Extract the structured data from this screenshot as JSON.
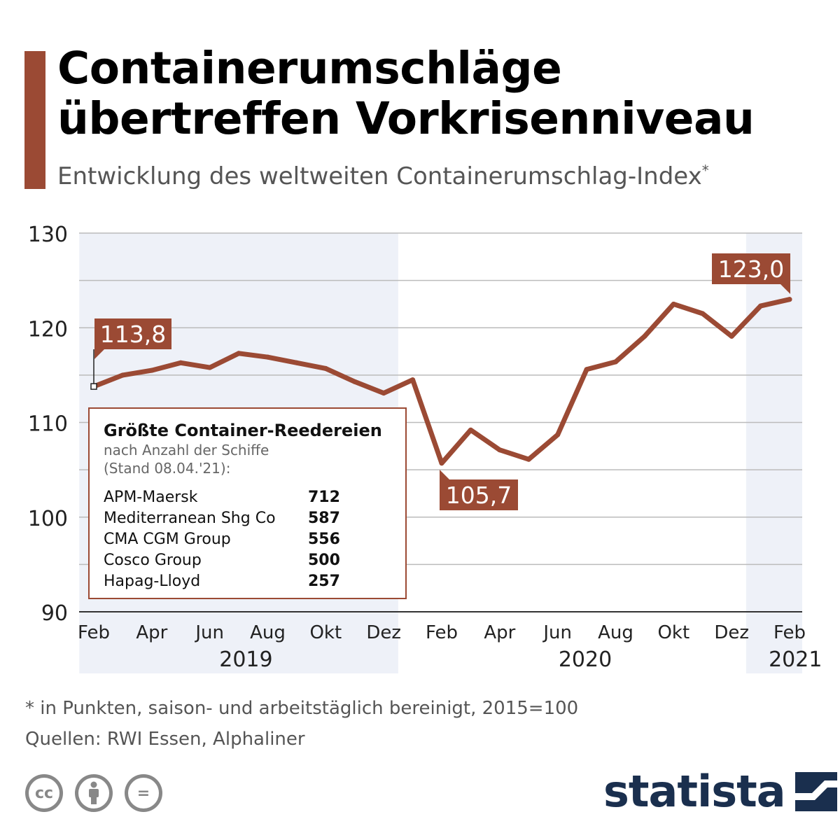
{
  "header": {
    "title_line1": "Containerumschläge",
    "title_line2": "übertreffen Vorkrisenniveau",
    "subtitle": "Entwicklung des weltweiten Containerumschlag-Index",
    "subtitle_marker": "*"
  },
  "colors": {
    "accent": "#9b4a34",
    "band": "#eef1f8",
    "grid": "#bbbbbb",
    "brand": "#1a2f4e"
  },
  "chart_data": {
    "type": "line",
    "title": "Entwicklung des weltweiten Containerumschlag-Index",
    "ylim": [
      90,
      130
    ],
    "yticks": [
      90,
      100,
      110,
      120,
      130
    ],
    "x_tick_labels": [
      "Feb",
      "Apr",
      "Jun",
      "Aug",
      "Okt",
      "Dez",
      "Feb",
      "Apr",
      "Jun",
      "Aug",
      "Okt",
      "Dez",
      "Feb"
    ],
    "year_labels": [
      {
        "label": "2019",
        "center_index": 5.25
      },
      {
        "label": "2020",
        "center_index": 16.95
      },
      {
        "label": "2021",
        "center_index": 24.2
      }
    ],
    "year_bands": [
      {
        "from_index": -0.5,
        "to_index": 10.5
      },
      {
        "from_index": 22.5,
        "to_index": 24.5
      }
    ],
    "series": [
      {
        "name": "Containerumschlag-Index",
        "x": [
          "Feb 2019",
          "Mär 2019",
          "Apr 2019",
          "Mai 2019",
          "Jun 2019",
          "Jul 2019",
          "Aug 2019",
          "Sep 2019",
          "Okt 2019",
          "Nov 2019",
          "Dez 2019",
          "Jan 2020",
          "Feb 2020",
          "Mär 2020",
          "Apr 2020",
          "Mai 2020",
          "Jun 2020",
          "Jul 2020",
          "Aug 2020",
          "Sep 2020",
          "Okt 2020",
          "Nov 2020",
          "Dez 2020",
          "Jan 2021",
          "Feb 2021"
        ],
        "values": [
          113.8,
          115.0,
          115.5,
          116.3,
          115.8,
          117.3,
          116.9,
          116.3,
          115.7,
          114.3,
          113.1,
          114.5,
          105.7,
          109.2,
          107.1,
          106.1,
          108.7,
          115.6,
          116.4,
          119.1,
          122.5,
          121.5,
          119.1,
          122.3,
          123.0
        ]
      }
    ],
    "annotations": [
      {
        "label": "113,8",
        "index": 0
      },
      {
        "label": "105,7",
        "index": 12
      },
      {
        "label": "123,0",
        "index": 24
      }
    ]
  },
  "table": {
    "title": "Größte Container-Reedereien",
    "subtitle_line1": "nach Anzahl der Schiffe",
    "subtitle_line2": "(Stand 08.04.'21):",
    "rows": [
      {
        "name": "APM-Maersk",
        "value": "712"
      },
      {
        "name": "Mediterranean Shg Co",
        "value": "587"
      },
      {
        "name": "CMA CGM Group",
        "value": "556"
      },
      {
        "name": "Cosco Group",
        "value": "500"
      },
      {
        "name": "Hapag-Lloyd",
        "value": "257"
      }
    ]
  },
  "footer": {
    "note": "* in Punkten, saison- und arbeitstäglich bereinigt, 2015=100",
    "sources": "Quellen: RWI Essen, Alphaliner",
    "brand": "statista",
    "license_icons": [
      {
        "icon": "cc-icon",
        "glyph": "cc"
      },
      {
        "icon": "by-person-icon",
        "glyph": ""
      },
      {
        "icon": "nd-equals-icon",
        "glyph": "="
      }
    ]
  }
}
